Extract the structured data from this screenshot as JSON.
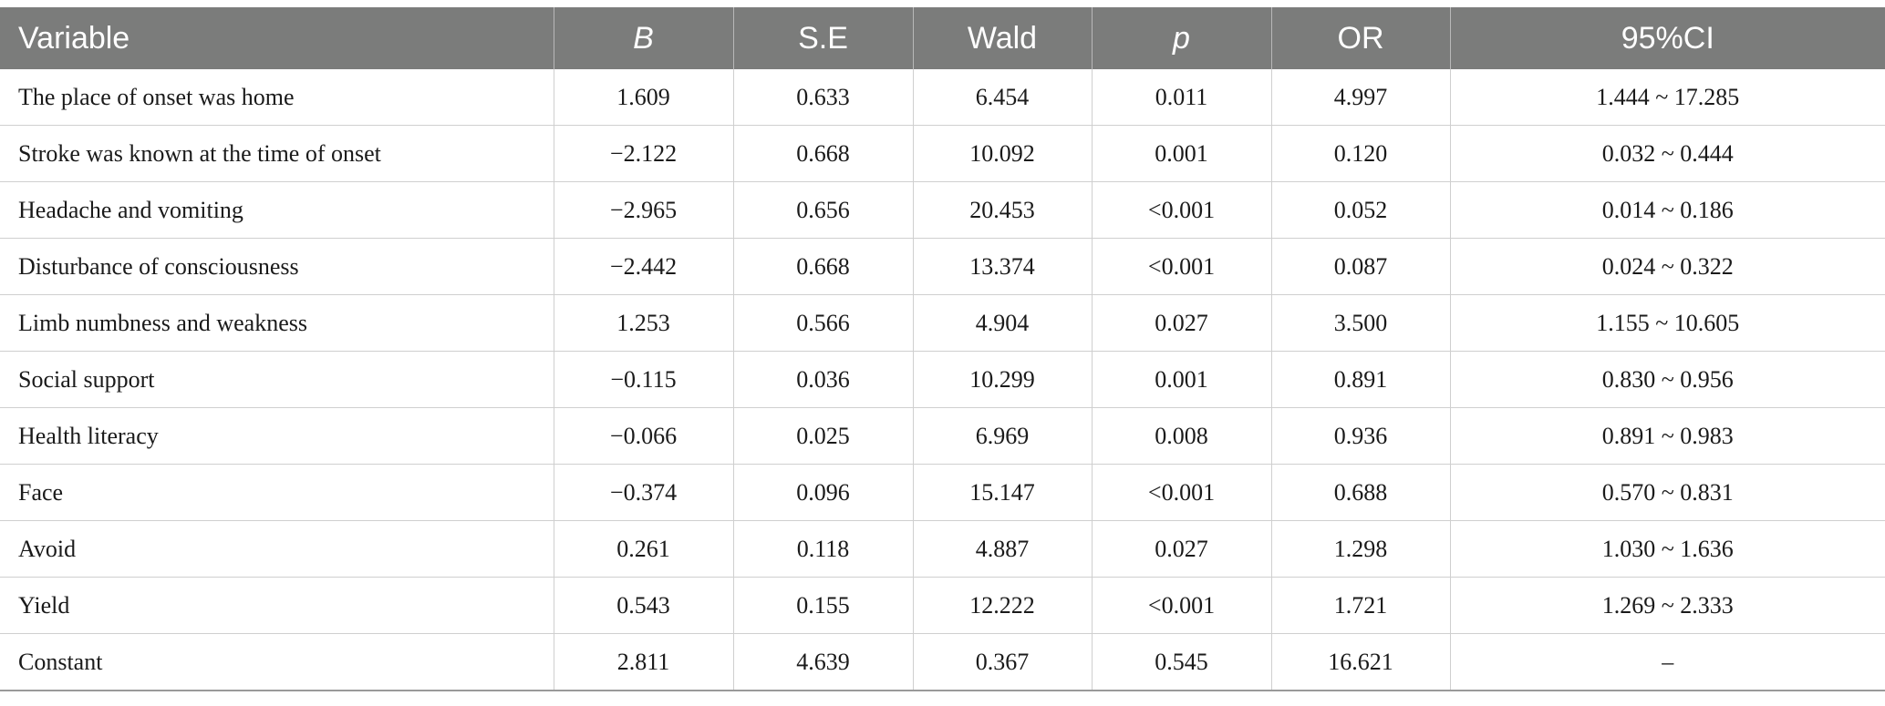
{
  "table": {
    "headers": [
      "Variable",
      "B",
      "S.E",
      "Wald",
      "p",
      "OR",
      "95%CI"
    ],
    "rows": [
      [
        "The place of onset was home",
        "1.609",
        "0.633",
        "6.454",
        "0.011",
        "4.997",
        "1.444 ~ 17.285"
      ],
      [
        "Stroke was known at the time of onset",
        "−2.122",
        "0.668",
        "10.092",
        "0.001",
        "0.120",
        "0.032 ~ 0.444"
      ],
      [
        "Headache and vomiting",
        "−2.965",
        "0.656",
        "20.453",
        "<0.001",
        "0.052",
        "0.014 ~ 0.186"
      ],
      [
        "Disturbance of consciousness",
        "−2.442",
        "0.668",
        "13.374",
        "<0.001",
        "0.087",
        "0.024 ~ 0.322"
      ],
      [
        "Limb numbness and weakness",
        "1.253",
        "0.566",
        "4.904",
        "0.027",
        "3.500",
        "1.155 ~ 10.605"
      ],
      [
        "Social support",
        "−0.115",
        "0.036",
        "10.299",
        "0.001",
        "0.891",
        "0.830 ~ 0.956"
      ],
      [
        "Health literacy",
        "−0.066",
        "0.025",
        "6.969",
        "0.008",
        "0.936",
        "0.891 ~ 0.983"
      ],
      [
        "Face",
        "−0.374",
        "0.096",
        "15.147",
        "<0.001",
        "0.688",
        "0.570 ~ 0.831"
      ],
      [
        "Avoid",
        "0.261",
        "0.118",
        "4.887",
        "0.027",
        "1.298",
        "1.030 ~ 1.636"
      ],
      [
        "Yield",
        "0.543",
        "0.155",
        "12.222",
        "<0.001",
        "1.721",
        "1.269 ~ 2.333"
      ],
      [
        "Constant",
        "2.811",
        "4.639",
        "0.367",
        "0.545",
        "16.621",
        "–"
      ]
    ]
  },
  "colors": {
    "header_bg": "#7b7c7b",
    "header_text": "#ffffff",
    "grid": "#cfcfcf"
  }
}
